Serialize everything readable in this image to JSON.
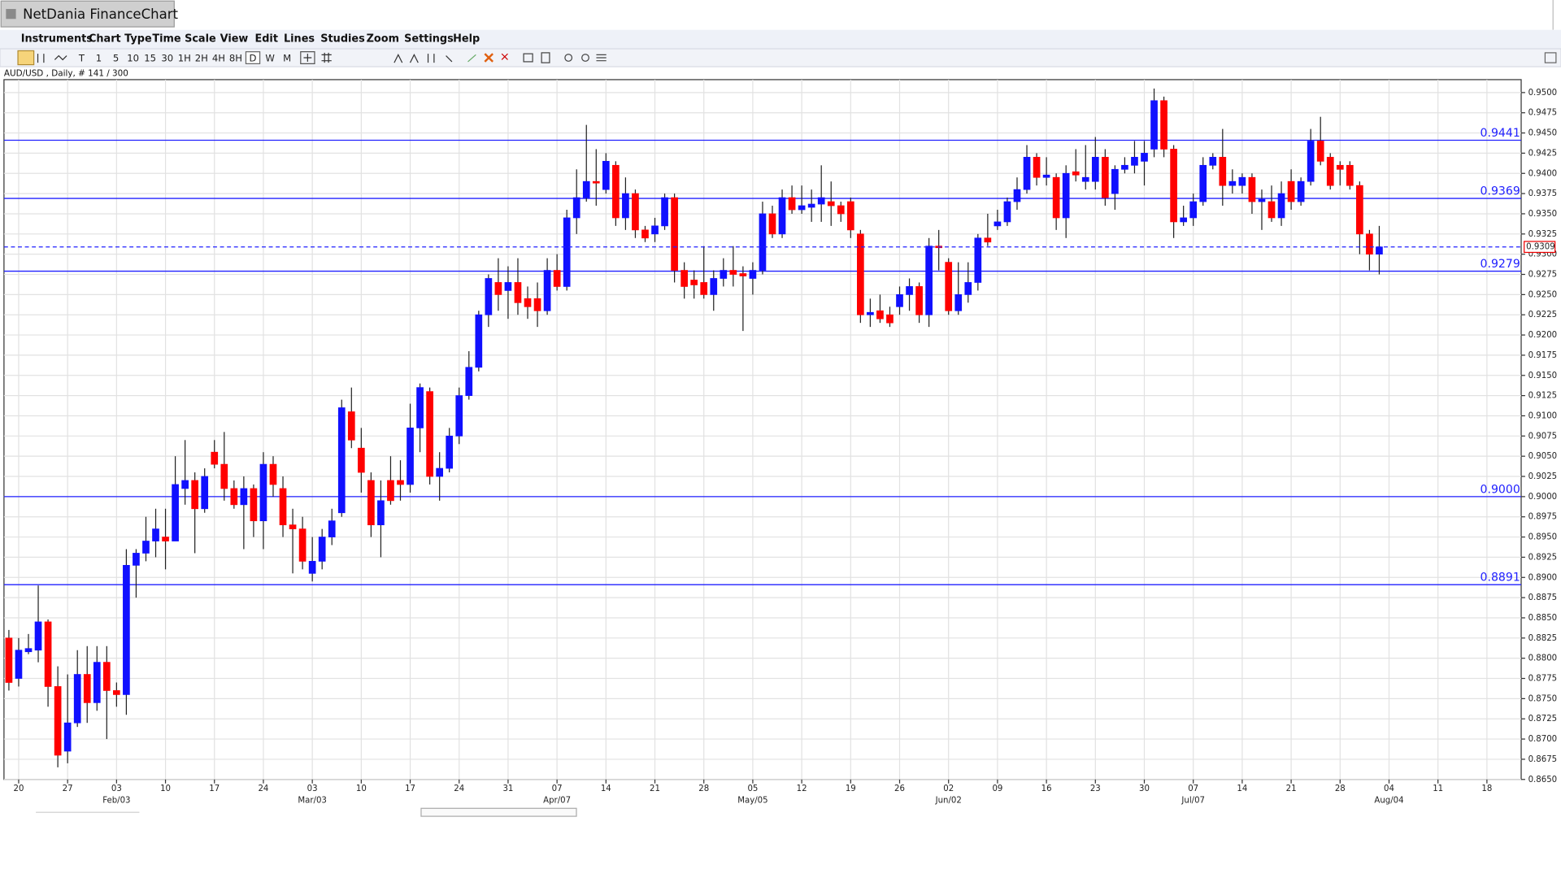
{
  "app": {
    "window_title": "NetDania FinanceChart",
    "menu": [
      "Instruments",
      "Chart Type",
      "Time Scale",
      "View",
      "Edit",
      "Lines",
      "Studies",
      "Zoom",
      "Settings",
      "Help"
    ],
    "toolbar_periods": [
      "T",
      "1",
      "5",
      "10",
      "15",
      "30",
      "1H",
      "2H",
      "4H",
      "8H",
      "D",
      "W",
      "M"
    ]
  },
  "chart_data": {
    "type": "candlestick",
    "subtitle": "AUD/USD , Daily, # 141 / 300",
    "categories": [
      null,
      "20",
      null,
      null,
      null,
      null,
      "27",
      null,
      null,
      null,
      null,
      "03",
      null,
      null,
      null,
      null,
      "10",
      null,
      null,
      null,
      null,
      "17",
      null,
      null,
      null,
      null,
      "24",
      null,
      null,
      null,
      null,
      "03",
      null,
      null,
      null,
      null,
      "10",
      null,
      null,
      null,
      null,
      "17",
      null,
      null,
      null,
      null,
      "24",
      null,
      null,
      null,
      null,
      "31",
      null,
      null,
      null,
      null,
      "07",
      null,
      null,
      null,
      null,
      "14",
      null,
      null,
      null,
      null,
      "21",
      null,
      null,
      null,
      null,
      "28",
      null,
      null,
      null,
      null,
      "05",
      null,
      null,
      null,
      null,
      "12",
      null,
      null,
      null,
      null,
      "19",
      null,
      null,
      null,
      null,
      "26",
      null,
      null,
      null,
      null,
      "02",
      null,
      null,
      null,
      null,
      "09",
      null,
      null,
      null,
      null,
      "16",
      null,
      null,
      null,
      null,
      "23",
      null,
      null,
      null,
      null,
      "30",
      null,
      null,
      null,
      null,
      "07",
      null,
      null,
      null,
      null,
      "14",
      null,
      null,
      null,
      null,
      "21",
      null,
      null,
      null,
      null,
      "28",
      null,
      null,
      null,
      null,
      "04",
      null,
      null,
      null,
      null,
      "11",
      null,
      null,
      null,
      null,
      "18",
      null,
      null,
      null
    ],
    "category_months": [
      null,
      null,
      null,
      null,
      null,
      null,
      null,
      null,
      null,
      null,
      null,
      "Feb/03",
      null,
      null,
      null,
      null,
      null,
      null,
      null,
      null,
      null,
      null,
      null,
      null,
      null,
      null,
      null,
      null,
      null,
      null,
      null,
      "Mar/03",
      null,
      null,
      null,
      null,
      null,
      null,
      null,
      null,
      null,
      null,
      null,
      null,
      null,
      null,
      null,
      null,
      null,
      null,
      null,
      null,
      null,
      null,
      null,
      null,
      "Apr/07",
      null,
      null,
      null,
      null,
      null,
      null,
      null,
      null,
      null,
      null,
      null,
      null,
      null,
      null,
      null,
      null,
      null,
      null,
      null,
      "May/05",
      null,
      null,
      null,
      null,
      null,
      null,
      null,
      null,
      null,
      null,
      null,
      null,
      null,
      null,
      null,
      null,
      null,
      null,
      null,
      "Jun/02",
      null,
      null,
      null,
      null,
      null,
      null,
      null,
      null,
      null,
      null,
      null,
      null,
      null,
      null,
      null,
      null,
      null,
      null,
      null,
      null,
      null,
      null,
      null,
      null,
      "Jul/07",
      null,
      null,
      null,
      null,
      null,
      null,
      null,
      null,
      null,
      null,
      null,
      null,
      null,
      null,
      null,
      null,
      null,
      null,
      null,
      "Aug/04",
      null,
      null,
      null,
      null,
      null,
      null,
      null,
      null,
      null,
      null,
      null,
      null,
      null
    ],
    "open": [
      0.8825,
      0.8775,
      0.8808,
      0.881,
      0.8845,
      0.8765,
      0.8685,
      0.872,
      0.878,
      0.8745,
      0.8795,
      0.876,
      0.8755,
      0.8915,
      0.893,
      0.8945,
      0.895,
      0.8945,
      0.901,
      0.902,
      0.8985,
      0.9055,
      0.904,
      0.901,
      0.899,
      0.901,
      0.897,
      0.904,
      0.901,
      0.8965,
      0.896,
      0.8905,
      0.892,
      0.895,
      0.898,
      0.9105,
      0.906,
      0.902,
      0.8965,
      0.902,
      0.902,
      0.9015,
      0.9085,
      0.913,
      0.9025,
      0.9035,
      0.9075,
      0.9125,
      0.916,
      0.9225,
      0.9265,
      0.9255,
      0.9265,
      0.9245,
      0.9245,
      0.923,
      0.928,
      0.926,
      0.9345,
      0.937,
      0.939,
      0.938,
      0.941,
      0.9345,
      0.9375,
      0.933,
      0.9325,
      0.9335,
      0.937,
      0.928,
      0.9268,
      0.9265,
      0.925,
      0.927,
      0.928,
      0.9276,
      0.927,
      0.928,
      0.935,
      0.9325,
      0.937,
      0.9355,
      0.9358,
      0.9362,
      0.9365,
      0.936,
      0.9365,
      0.9325,
      0.9225,
      0.923,
      0.9225,
      0.9235,
      0.925,
      0.926,
      0.9225,
      0.931,
      0.929,
      0.923,
      0.925,
      0.9265,
      0.932,
      0.9335,
      0.934,
      0.9365,
      0.938,
      0.942,
      0.9395,
      0.9395,
      0.9345,
      0.9402,
      0.939,
      0.939,
      0.942,
      0.9375,
      0.9405,
      0.941,
      0.9415,
      0.943,
      0.949,
      0.943,
      0.934,
      0.9345,
      0.9365,
      0.941,
      0.942,
      0.9385,
      0.9385,
      0.9395,
      0.9365,
      0.9365,
      0.9345,
      0.939,
      0.9365,
      0.939,
      0.944,
      0.942,
      0.941,
      0.941,
      0.9385,
      0.9325,
      0.93,
      null,
      null,
      null,
      null,
      null,
      null,
      null,
      null,
      null,
      null,
      null,
      null,
      null,
      null
    ],
    "high": [
      0.8835,
      0.8825,
      0.883,
      0.889,
      0.8848,
      0.879,
      0.878,
      0.881,
      0.8815,
      0.8815,
      0.8815,
      0.877,
      0.8935,
      0.8935,
      0.8975,
      0.8985,
      0.8985,
      0.905,
      0.907,
      0.903,
      0.9035,
      0.907,
      0.908,
      0.902,
      0.9025,
      0.9015,
      0.9055,
      0.905,
      0.9025,
      0.8985,
      0.8975,
      0.895,
      0.896,
      0.8985,
      0.912,
      0.9135,
      0.9085,
      0.903,
      0.902,
      0.905,
      0.9045,
      0.9115,
      0.914,
      0.9135,
      0.9055,
      0.9085,
      0.9135,
      0.918,
      0.923,
      0.9275,
      0.9295,
      0.9285,
      0.9295,
      0.926,
      0.9265,
      0.9295,
      0.93,
      0.9355,
      0.9405,
      0.946,
      0.943,
      0.9425,
      0.9415,
      0.9395,
      0.938,
      0.9335,
      0.9345,
      0.9375,
      0.9375,
      0.929,
      0.928,
      0.931,
      0.928,
      0.9295,
      0.931,
      0.9285,
      0.929,
      0.9365,
      0.936,
      0.938,
      0.9385,
      0.9385,
      0.938,
      0.941,
      0.939,
      0.9365,
      0.937,
      0.933,
      0.9245,
      0.925,
      0.9235,
      0.926,
      0.927,
      0.9265,
      0.932,
      0.933,
      0.9295,
      0.929,
      0.929,
      0.9325,
      0.935,
      0.9355,
      0.937,
      0.9395,
      0.9435,
      0.9425,
      0.942,
      0.94,
      0.941,
      0.943,
      0.9435,
      0.9445,
      0.943,
      0.941,
      0.942,
      0.944,
      0.944,
      0.9505,
      0.9495,
      0.9435,
      0.936,
      0.9375,
      0.942,
      0.9425,
      0.9455,
      0.9405,
      0.94,
      0.94,
      0.938,
      0.9385,
      0.939,
      0.9405,
      0.9395,
      0.9455,
      0.947,
      0.9425,
      0.9415,
      0.9415,
      0.939,
      0.933,
      0.9335,
      null,
      null,
      null,
      null,
      null,
      null,
      null,
      null,
      null,
      null,
      null,
      null,
      null,
      null
    ],
    "low": [
      0.876,
      0.8765,
      0.8805,
      0.8795,
      0.874,
      0.8665,
      0.867,
      0.8715,
      0.872,
      0.8735,
      0.87,
      0.874,
      0.873,
      0.8875,
      0.892,
      0.8925,
      0.891,
      0.8945,
      0.899,
      0.893,
      0.898,
      0.9035,
      0.8995,
      0.8985,
      0.8935,
      0.895,
      0.8935,
      0.9,
      0.895,
      0.8905,
      0.891,
      0.8895,
      0.891,
      0.894,
      0.8975,
      0.906,
      0.9005,
      0.895,
      0.8925,
      0.899,
      0.8995,
      0.9005,
      0.9055,
      0.9015,
      0.8995,
      0.903,
      0.9065,
      0.912,
      0.9155,
      0.921,
      0.923,
      0.922,
      0.9225,
      0.922,
      0.921,
      0.9225,
      0.9255,
      0.9255,
      0.9325,
      0.9365,
      0.936,
      0.9375,
      0.9335,
      0.933,
      0.932,
      0.9315,
      0.9315,
      0.933,
      0.9265,
      0.9245,
      0.9245,
      0.9245,
      0.923,
      0.926,
      0.926,
      0.9205,
      0.925,
      0.9275,
      0.932,
      0.932,
      0.935,
      0.935,
      0.934,
      0.934,
      0.9335,
      0.934,
      0.932,
      0.9215,
      0.921,
      0.9215,
      0.921,
      0.9225,
      0.923,
      0.9215,
      0.921,
      0.928,
      0.9225,
      0.9225,
      0.924,
      0.9255,
      0.931,
      0.933,
      0.9335,
      0.9355,
      0.9375,
      0.9385,
      0.9385,
      0.933,
      0.932,
      0.939,
      0.938,
      0.938,
      0.936,
      0.9355,
      0.94,
      0.94,
      0.9385,
      0.942,
      0.942,
      0.932,
      0.9335,
      0.9335,
      0.936,
      0.9405,
      0.936,
      0.9375,
      0.9375,
      0.935,
      0.933,
      0.934,
      0.9335,
      0.9355,
      0.936,
      0.9385,
      0.941,
      0.938,
      0.9385,
      0.938,
      0.93,
      0.928,
      0.9275,
      null,
      null,
      null,
      null,
      null,
      null,
      null,
      null,
      null,
      null,
      null,
      null,
      null,
      null
    ],
    "close": [
      0.877,
      0.881,
      0.8812,
      0.8845,
      0.8765,
      0.868,
      0.872,
      0.878,
      0.8745,
      0.8795,
      0.876,
      0.8755,
      0.8915,
      0.893,
      0.8945,
      0.896,
      0.8945,
      0.9015,
      0.902,
      0.8985,
      0.9025,
      0.904,
      0.901,
      0.899,
      0.901,
      0.897,
      0.904,
      0.9015,
      0.8965,
      0.896,
      0.892,
      0.892,
      0.895,
      0.897,
      0.911,
      0.907,
      0.903,
      0.8965,
      0.8995,
      0.8995,
      0.9015,
      0.9085,
      0.9135,
      0.9025,
      0.9035,
      0.9075,
      0.9125,
      0.916,
      0.9225,
      0.927,
      0.925,
      0.9265,
      0.924,
      0.9235,
      0.923,
      0.928,
      0.926,
      0.9345,
      0.937,
      0.939,
      0.9388,
      0.9415,
      0.9345,
      0.9375,
      0.933,
      0.932,
      0.9335,
      0.937,
      0.928,
      0.926,
      0.9262,
      0.925,
      0.927,
      0.928,
      0.9275,
      0.9273,
      0.928,
      0.935,
      0.9325,
      0.937,
      0.9355,
      0.936,
      0.9362,
      0.937,
      0.936,
      0.935,
      0.933,
      0.9225,
      0.9228,
      0.922,
      0.9215,
      0.925,
      0.926,
      0.9225,
      0.931,
      0.9308,
      0.923,
      0.925,
      0.9265,
      0.932,
      0.9315,
      0.934,
      0.9365,
      0.938,
      0.942,
      0.9395,
      0.9398,
      0.9345,
      0.94,
      0.9398,
      0.9395,
      0.942,
      0.937,
      0.9405,
      0.941,
      0.942,
      0.9425,
      0.949,
      0.943,
      0.934,
      0.9345,
      0.9365,
      0.941,
      0.942,
      0.9385,
      0.939,
      0.9395,
      0.9365,
      0.9368,
      0.9345,
      0.9375,
      0.9365,
      0.939,
      0.944,
      0.9415,
      0.9385,
      0.9405,
      0.9385,
      0.9325,
      0.93,
      0.9309,
      null,
      null,
      null,
      null,
      null,
      null,
      null,
      null,
      null,
      null,
      null,
      null,
      null,
      null
    ],
    "up_color": "#1010ff",
    "down_color": "#ff0000",
    "ylim": [
      0.865,
      0.9516
    ],
    "yticks": [
      {
        "value": 0.865,
        "label": "0.8650"
      },
      0.8675,
      {
        "value": 0.87,
        "label": "0.8700"
      },
      0.8725,
      {
        "value": 0.875,
        "label": "0.8750"
      },
      0.8775,
      {
        "value": 0.88,
        "label": "0.8800"
      },
      0.8825,
      {
        "value": 0.885,
        "label": "0.8850"
      },
      0.8875,
      {
        "value": 0.89,
        "label": "0.8900"
      },
      0.8925,
      {
        "value": 0.895,
        "label": "0.8950"
      },
      0.8975,
      {
        "value": 0.9,
        "label": "0.9000"
      },
      0.9025,
      {
        "value": 0.905,
        "label": "0.9050"
      },
      0.9075,
      {
        "value": 0.91,
        "label": "0.9100"
      },
      0.9125,
      {
        "value": 0.915,
        "label": "0.9150"
      },
      0.9175,
      {
        "value": 0.92,
        "label": "0.9200"
      },
      0.9225,
      {
        "value": 0.925,
        "label": "0.9250"
      },
      0.9275,
      {
        "value": 0.93,
        "label": "0.9300"
      },
      0.9325,
      {
        "value": 0.935,
        "label": "0.9350"
      },
      0.9375,
      {
        "value": 0.94,
        "label": "0.9400"
      },
      0.9425,
      {
        "value": 0.945,
        "label": "0.9450"
      },
      0.9475,
      {
        "value": 0.95,
        "label": "0.9500"
      }
    ],
    "levels": [
      0.9441,
      0.9369,
      0.9279,
      {
        "value": 0.9,
        "label": "0.9000"
      },
      0.8891
    ],
    "level_color": "#2020ff",
    "last_price": 0.9309,
    "grid": true
  }
}
